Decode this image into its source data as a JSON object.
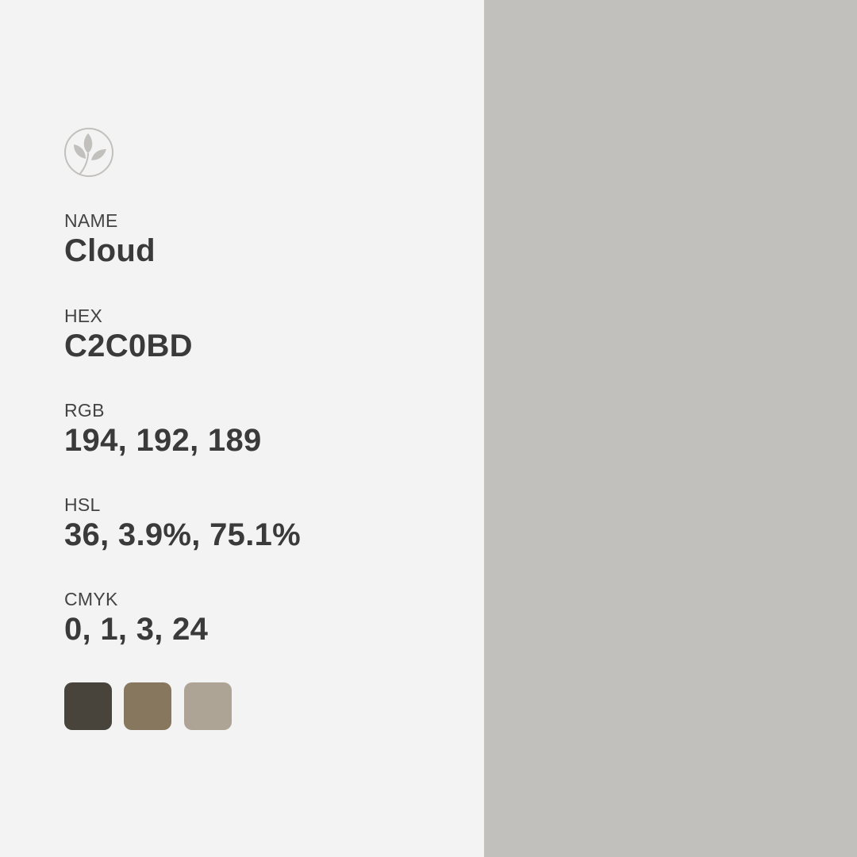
{
  "colors": {
    "background_left": "#f3f3f3",
    "main_swatch": "#c2c0bd",
    "text": "#3a3a3a",
    "label_text": "#444444",
    "logo_stroke": "#c2c0bd"
  },
  "logo": {
    "icon": "leaf-sprig-icon"
  },
  "fields": {
    "name": {
      "label": "NAME",
      "value": "Cloud"
    },
    "hex": {
      "label": "HEX",
      "value": "C2C0BD"
    },
    "rgb": {
      "label": "RGB",
      "value": "194, 192, 189"
    },
    "hsl": {
      "label": "HSL",
      "value": "36, 3.9%, 75.1%"
    },
    "cmyk": {
      "label": "CMYK",
      "value": "0, 1, 3, 24"
    }
  },
  "related_swatches": [
    {
      "color": "#48433b"
    },
    {
      "color": "#88775f"
    },
    {
      "color": "#aea496"
    }
  ]
}
